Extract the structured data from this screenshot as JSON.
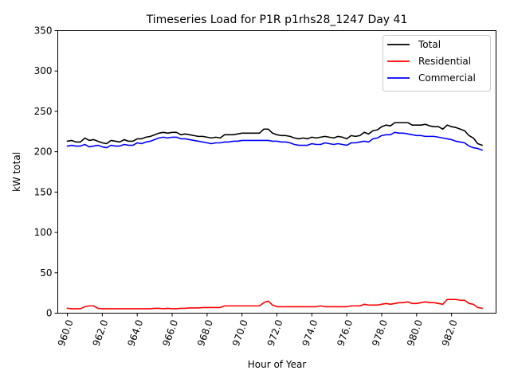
{
  "chart_data": {
    "type": "line",
    "title": "Timeseries Load for P1R p1rhs28_1247  Day 41",
    "xlabel": "Hour of Year",
    "ylabel": "kW total",
    "xlim": [
      959.45,
      984.55
    ],
    "ylim": [
      0,
      350
    ],
    "xticks": [
      960,
      962,
      964,
      966,
      968,
      970,
      972,
      974,
      976,
      978,
      980,
      982
    ],
    "xtick_labels": [
      "960.0",
      "962.0",
      "964.0",
      "966.0",
      "968.0",
      "970.0",
      "972.0",
      "974.0",
      "976.0",
      "978.0",
      "980.0",
      "982.0"
    ],
    "yticks": [
      0,
      50,
      100,
      150,
      200,
      250,
      300,
      350
    ],
    "ytick_labels": [
      "0",
      "50",
      "100",
      "150",
      "200",
      "250",
      "300",
      "350"
    ],
    "legend_position": "top-right",
    "x_start": 960,
    "x_step": 0.25,
    "series": [
      {
        "name": "Total",
        "color": "#000000",
        "values": [
          213,
          214,
          212,
          212,
          217,
          214,
          215,
          213,
          211,
          210,
          214,
          213,
          212,
          215,
          213,
          213,
          216,
          216,
          218,
          219,
          221,
          223,
          224,
          223,
          224,
          224,
          221,
          222,
          221,
          220,
          219,
          219,
          218,
          217,
          218,
          217,
          221,
          221,
          221,
          222,
          223,
          223,
          223,
          223,
          223,
          228,
          228,
          223,
          221,
          220,
          220,
          219,
          217,
          216,
          217,
          216,
          218,
          217,
          218,
          219,
          218,
          217,
          219,
          218,
          216,
          220,
          219,
          220,
          224,
          222,
          226,
          227,
          231,
          233,
          232,
          236,
          236,
          236,
          236,
          233,
          233,
          233,
          234,
          232,
          231,
          231,
          228,
          233,
          231,
          230,
          228,
          226,
          220,
          217,
          210,
          208
        ]
      },
      {
        "name": "Residential",
        "color": "#ff0000",
        "values": [
          6,
          5.5,
          5.5,
          5.5,
          8,
          9,
          9,
          6,
          5.5,
          5.5,
          5.5,
          5.5,
          5.5,
          5.5,
          5.5,
          5.5,
          5.5,
          5.5,
          5.5,
          5.5,
          6,
          6,
          5.5,
          6,
          5.5,
          5.5,
          6,
          6,
          6.5,
          6.5,
          6.5,
          7,
          7,
          7,
          7,
          7,
          9,
          9,
          9,
          9,
          9,
          9,
          9,
          9,
          9,
          13,
          15,
          10,
          8,
          8,
          8,
          8,
          8,
          8,
          8,
          8,
          8,
          8,
          9,
          8,
          8,
          8,
          8,
          8,
          8,
          9,
          9,
          9,
          11,
          10,
          10,
          10,
          11,
          12,
          11,
          12,
          13,
          13,
          14,
          12,
          12,
          13,
          14,
          13,
          13,
          12,
          11,
          17,
          17,
          17,
          16,
          16,
          12,
          11,
          7,
          6
        ]
      },
      {
        "name": "Commercial",
        "color": "#0000ff",
        "values": [
          207,
          208,
          207,
          207,
          209,
          206,
          207,
          208,
          206,
          205,
          208,
          207,
          207,
          209,
          208,
          208,
          211,
          210,
          212,
          213,
          215,
          217,
          218,
          217,
          218,
          218,
          216,
          216,
          215,
          214,
          213,
          212,
          211,
          210,
          211,
          211,
          212,
          212,
          213,
          213,
          214,
          214,
          214,
          214,
          214,
          214,
          214,
          213,
          213,
          212,
          212,
          211,
          209,
          208,
          208,
          208,
          210,
          209,
          209,
          211,
          210,
          209,
          210,
          209,
          208,
          211,
          211,
          212,
          213,
          212,
          216,
          217,
          220,
          221,
          221,
          224,
          223,
          223,
          222,
          221,
          220,
          220,
          219,
          219,
          219,
          218,
          217,
          216,
          215,
          213,
          212,
          211,
          207,
          205,
          204,
          202
        ]
      }
    ]
  }
}
